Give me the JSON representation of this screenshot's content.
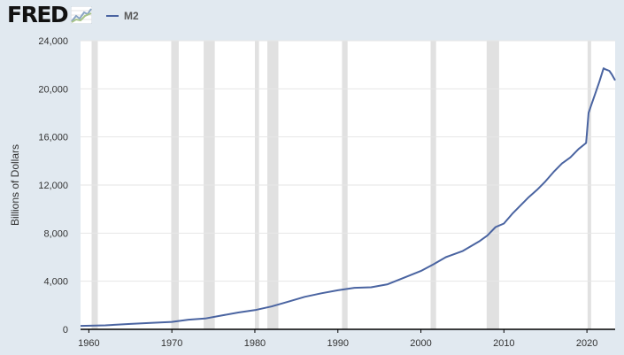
{
  "header": {
    "logo_text": "FRED",
    "logo_icon": "line-graph-icon",
    "legend_label": "M2"
  },
  "colors": {
    "background": "#e1e9f0",
    "plot_background": "#ffffff",
    "series": "#4a64a1",
    "recession": "#e1e1e1",
    "gridline": "#e6e6e6",
    "axis": "#000000"
  },
  "chart_data": {
    "type": "line",
    "ylabel": "Billions of Dollars",
    "xlim": [
      1959.0,
      2023.4
    ],
    "ylim": [
      0,
      24000
    ],
    "x_ticks": [
      1960,
      1970,
      1980,
      1990,
      2000,
      2010,
      2020
    ],
    "x_tick_labels": [
      "1960",
      "1970",
      "1980",
      "1990",
      "2000",
      "2010",
      "2020"
    ],
    "y_ticks": [
      0,
      4000,
      8000,
      12000,
      16000,
      20000,
      24000
    ],
    "y_tick_labels": [
      "0",
      "4,000",
      "8,000",
      "12,000",
      "16,000",
      "20,000",
      "24,000"
    ],
    "grid": true,
    "legend": "top-left",
    "recessions": [
      [
        1960.33,
        1961.08
      ],
      [
        1969.92,
        1970.83
      ],
      [
        1973.83,
        1975.17
      ],
      [
        1980.0,
        1980.5
      ],
      [
        1981.5,
        1982.83
      ],
      [
        1990.5,
        1991.17
      ],
      [
        2001.17,
        2001.83
      ],
      [
        2007.92,
        2009.42
      ],
      [
        2020.08,
        2020.33
      ]
    ],
    "series": [
      {
        "name": "M2",
        "x": [
          1959.0,
          1962,
          1965,
          1968,
          1970,
          1972,
          1974,
          1976,
          1978,
          1980,
          1982,
          1984,
          1986,
          1988,
          1990,
          1992,
          1994,
          1996,
          1998,
          2000,
          2001.5,
          2003,
          2005,
          2007,
          2008,
          2009,
          2010,
          2011,
          2012,
          2013,
          2014,
          2015,
          2016,
          2017,
          2018,
          2019,
          2019.9,
          2020.2,
          2020.5,
          2021.0,
          2021.5,
          2022.0,
          2022.3,
          2022.7,
          2023.0,
          2023.4
        ],
        "y": [
          290,
          330,
          450,
          550,
          620,
          800,
          900,
          1150,
          1400,
          1600,
          1900,
          2300,
          2700,
          3000,
          3250,
          3450,
          3500,
          3750,
          4300,
          4850,
          5400,
          6000,
          6500,
          7300,
          7800,
          8500,
          8800,
          9600,
          10300,
          11000,
          11600,
          12300,
          13100,
          13800,
          14300,
          15000,
          15500,
          18000,
          18600,
          19600,
          20600,
          21700,
          21600,
          21500,
          21200,
          20700
        ]
      }
    ]
  }
}
